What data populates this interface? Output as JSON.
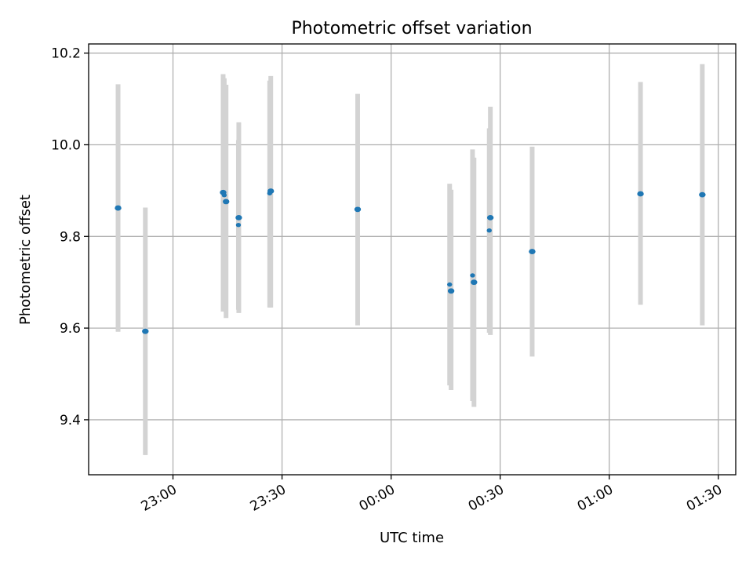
{
  "chart_data": {
    "type": "scatter",
    "title": "Photometric offset variation",
    "xlabel": "UTC time",
    "ylabel": "Photometric offset",
    "xlim_minutes_from_2300": [
      -23.2,
      154.8
    ],
    "ylim": [
      9.28,
      10.22
    ],
    "grid": true,
    "x_ticks": [
      {
        "label": "23:00",
        "minutes": 0
      },
      {
        "label": "23:30",
        "minutes": 30
      },
      {
        "label": "00:00",
        "minutes": 60
      },
      {
        "label": "00:30",
        "minutes": 90
      },
      {
        "label": "01:00",
        "minutes": 120
      },
      {
        "label": "01:30",
        "minutes": 150
      }
    ],
    "y_ticks": [
      9.4,
      9.6,
      9.8,
      10.0,
      10.2
    ],
    "y_tick_labels": [
      "9.4",
      "9.6",
      "9.8",
      "10.0",
      "10.2"
    ],
    "points": [
      {
        "t": -15.1,
        "y": 9.862,
        "lo": 9.592,
        "hi": 10.132,
        "size": "large"
      },
      {
        "t": -7.6,
        "y": 9.593,
        "lo": 9.323,
        "hi": 9.863,
        "size": "large"
      },
      {
        "t": 13.8,
        "y": 9.896,
        "lo": 9.636,
        "hi": 10.154,
        "size": "large"
      },
      {
        "t": 14.1,
        "y": 9.89,
        "lo": 9.64,
        "hi": 10.145,
        "size": "small"
      },
      {
        "t": 14.6,
        "y": 9.876,
        "lo": 9.622,
        "hi": 10.131,
        "size": "large"
      },
      {
        "t": 18.1,
        "y": 9.841,
        "lo": 9.633,
        "hi": 10.049,
        "size": "large"
      },
      {
        "t": 18.0,
        "y": 9.825,
        "lo": 9.64,
        "hi": 10.01,
        "size": "small"
      },
      {
        "t": 26.6,
        "y": 9.894,
        "lo": 9.645,
        "hi": 10.14,
        "size": "small"
      },
      {
        "t": 26.9,
        "y": 9.899,
        "lo": 9.645,
        "hi": 10.15,
        "size": "large"
      },
      {
        "t": 50.8,
        "y": 9.859,
        "lo": 9.606,
        "hi": 10.111,
        "size": "large"
      },
      {
        "t": 76.1,
        "y": 9.695,
        "lo": 9.475,
        "hi": 9.915,
        "size": "small"
      },
      {
        "t": 76.5,
        "y": 9.681,
        "lo": 9.465,
        "hi": 9.902,
        "size": "large"
      },
      {
        "t": 82.4,
        "y": 9.715,
        "lo": 9.441,
        "hi": 9.99,
        "size": "small"
      },
      {
        "t": 82.8,
        "y": 9.7,
        "lo": 9.428,
        "hi": 9.972,
        "size": "large"
      },
      {
        "t": 87.0,
        "y": 9.813,
        "lo": 9.59,
        "hi": 10.036,
        "size": "small"
      },
      {
        "t": 87.3,
        "y": 9.841,
        "lo": 9.585,
        "hi": 10.083,
        "size": "large"
      },
      {
        "t": 98.8,
        "y": 9.767,
        "lo": 9.538,
        "hi": 9.996,
        "size": "large"
      },
      {
        "t": 128.6,
        "y": 9.893,
        "lo": 9.651,
        "hi": 10.137,
        "size": "large"
      },
      {
        "t": 145.6,
        "y": 9.891,
        "lo": 9.606,
        "hi": 10.176,
        "size": "large"
      }
    ]
  }
}
